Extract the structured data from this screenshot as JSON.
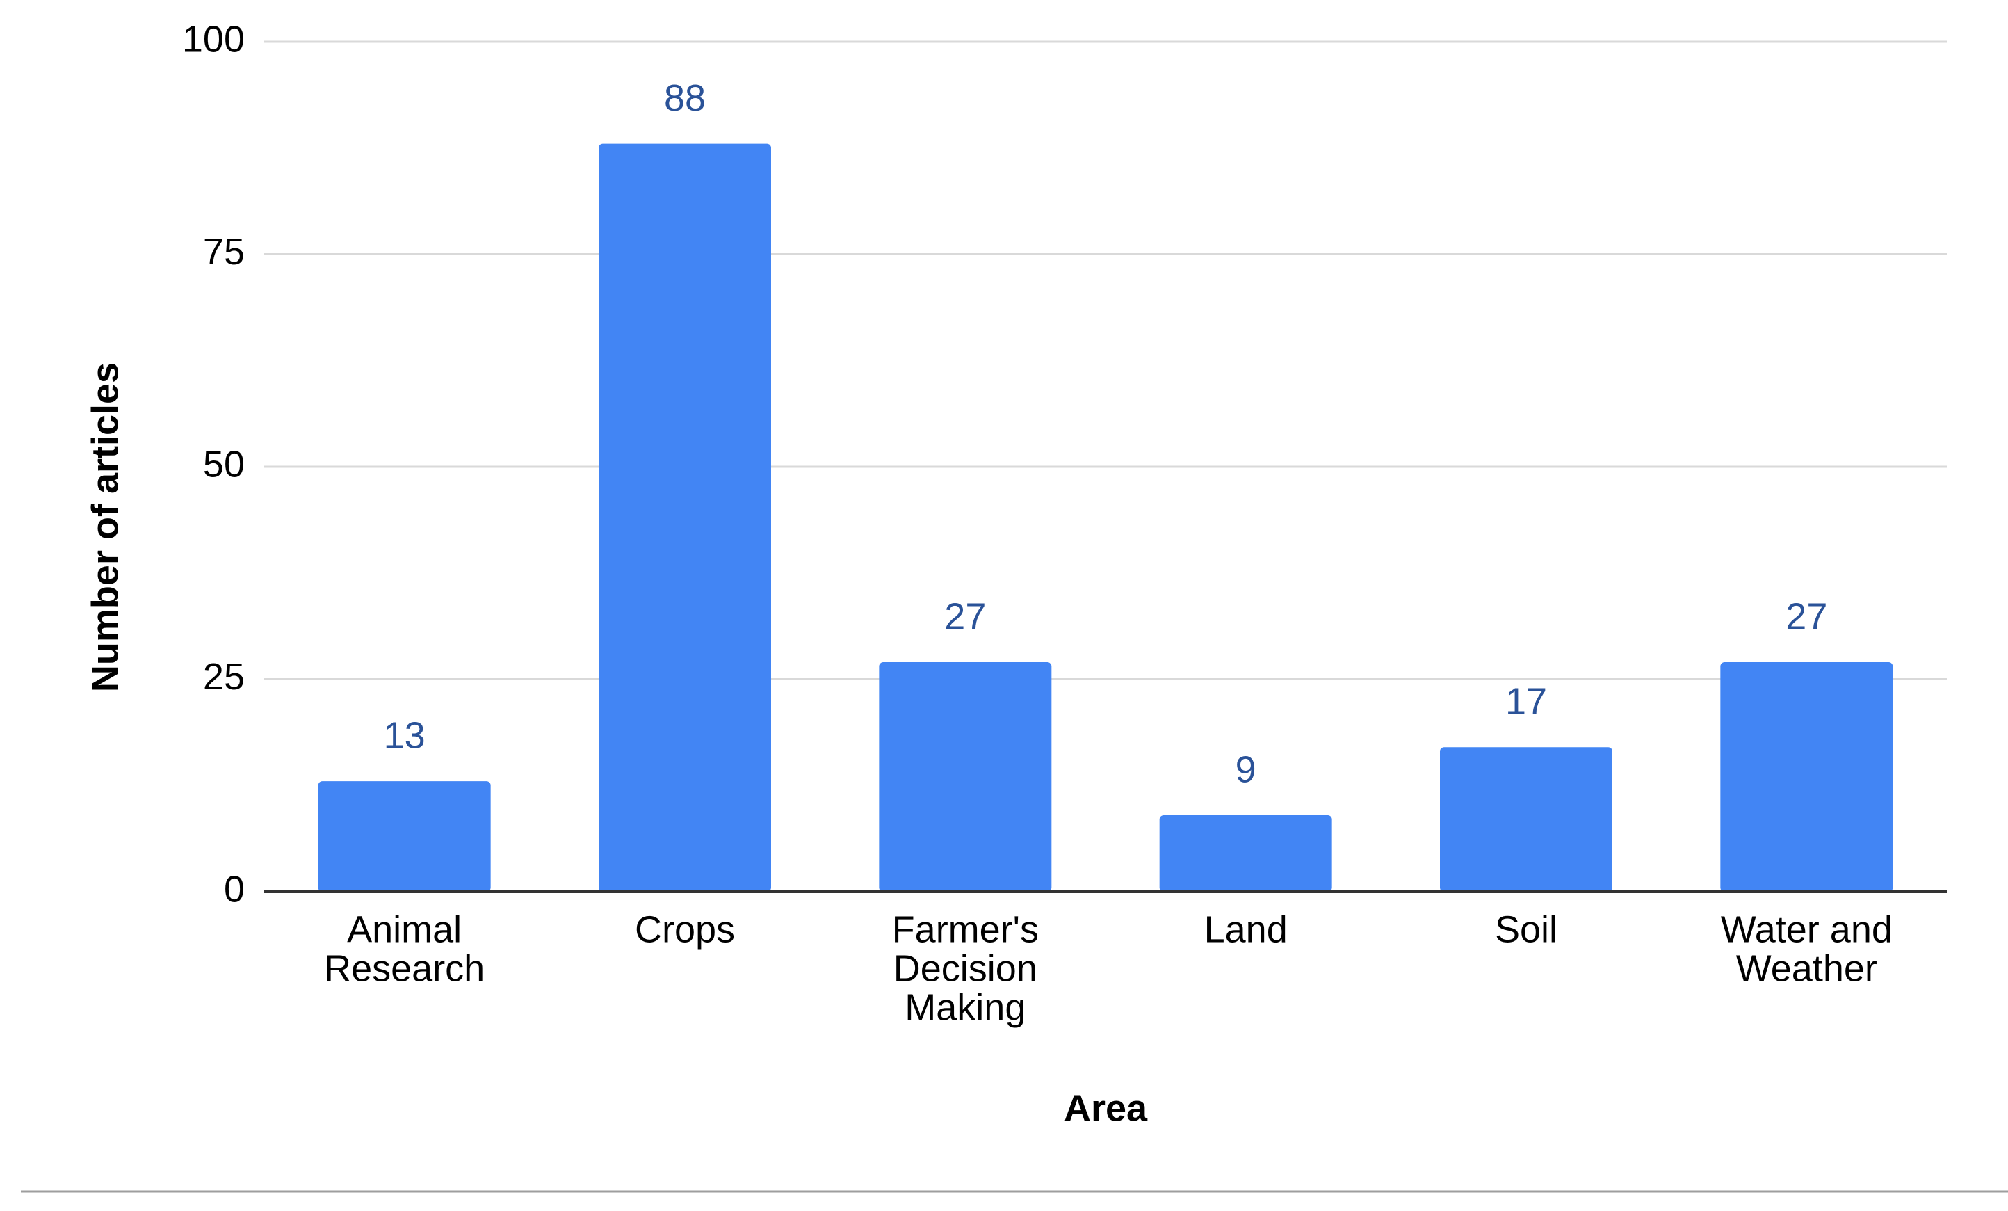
{
  "chart_data": {
    "type": "bar",
    "title": "",
    "xlabel": "Area",
    "ylabel": "Number of articles",
    "categories": [
      [
        "Animal",
        "Research"
      ],
      [
        "Crops"
      ],
      [
        "Farmer's",
        "Decision",
        "Making"
      ],
      [
        "Land"
      ],
      [
        "Soil"
      ],
      [
        "Water and",
        "Weather"
      ]
    ],
    "values": [
      13,
      88,
      27,
      9,
      17,
      27
    ],
    "ylim": [
      0,
      100
    ],
    "yticks": [
      0,
      25,
      50,
      75,
      100
    ],
    "grid": true,
    "legend": "none",
    "bar_color": "#4285f4",
    "label_color": "#2a5298",
    "grid_color": "#d9d9d9",
    "baseline_color": "#333333"
  }
}
